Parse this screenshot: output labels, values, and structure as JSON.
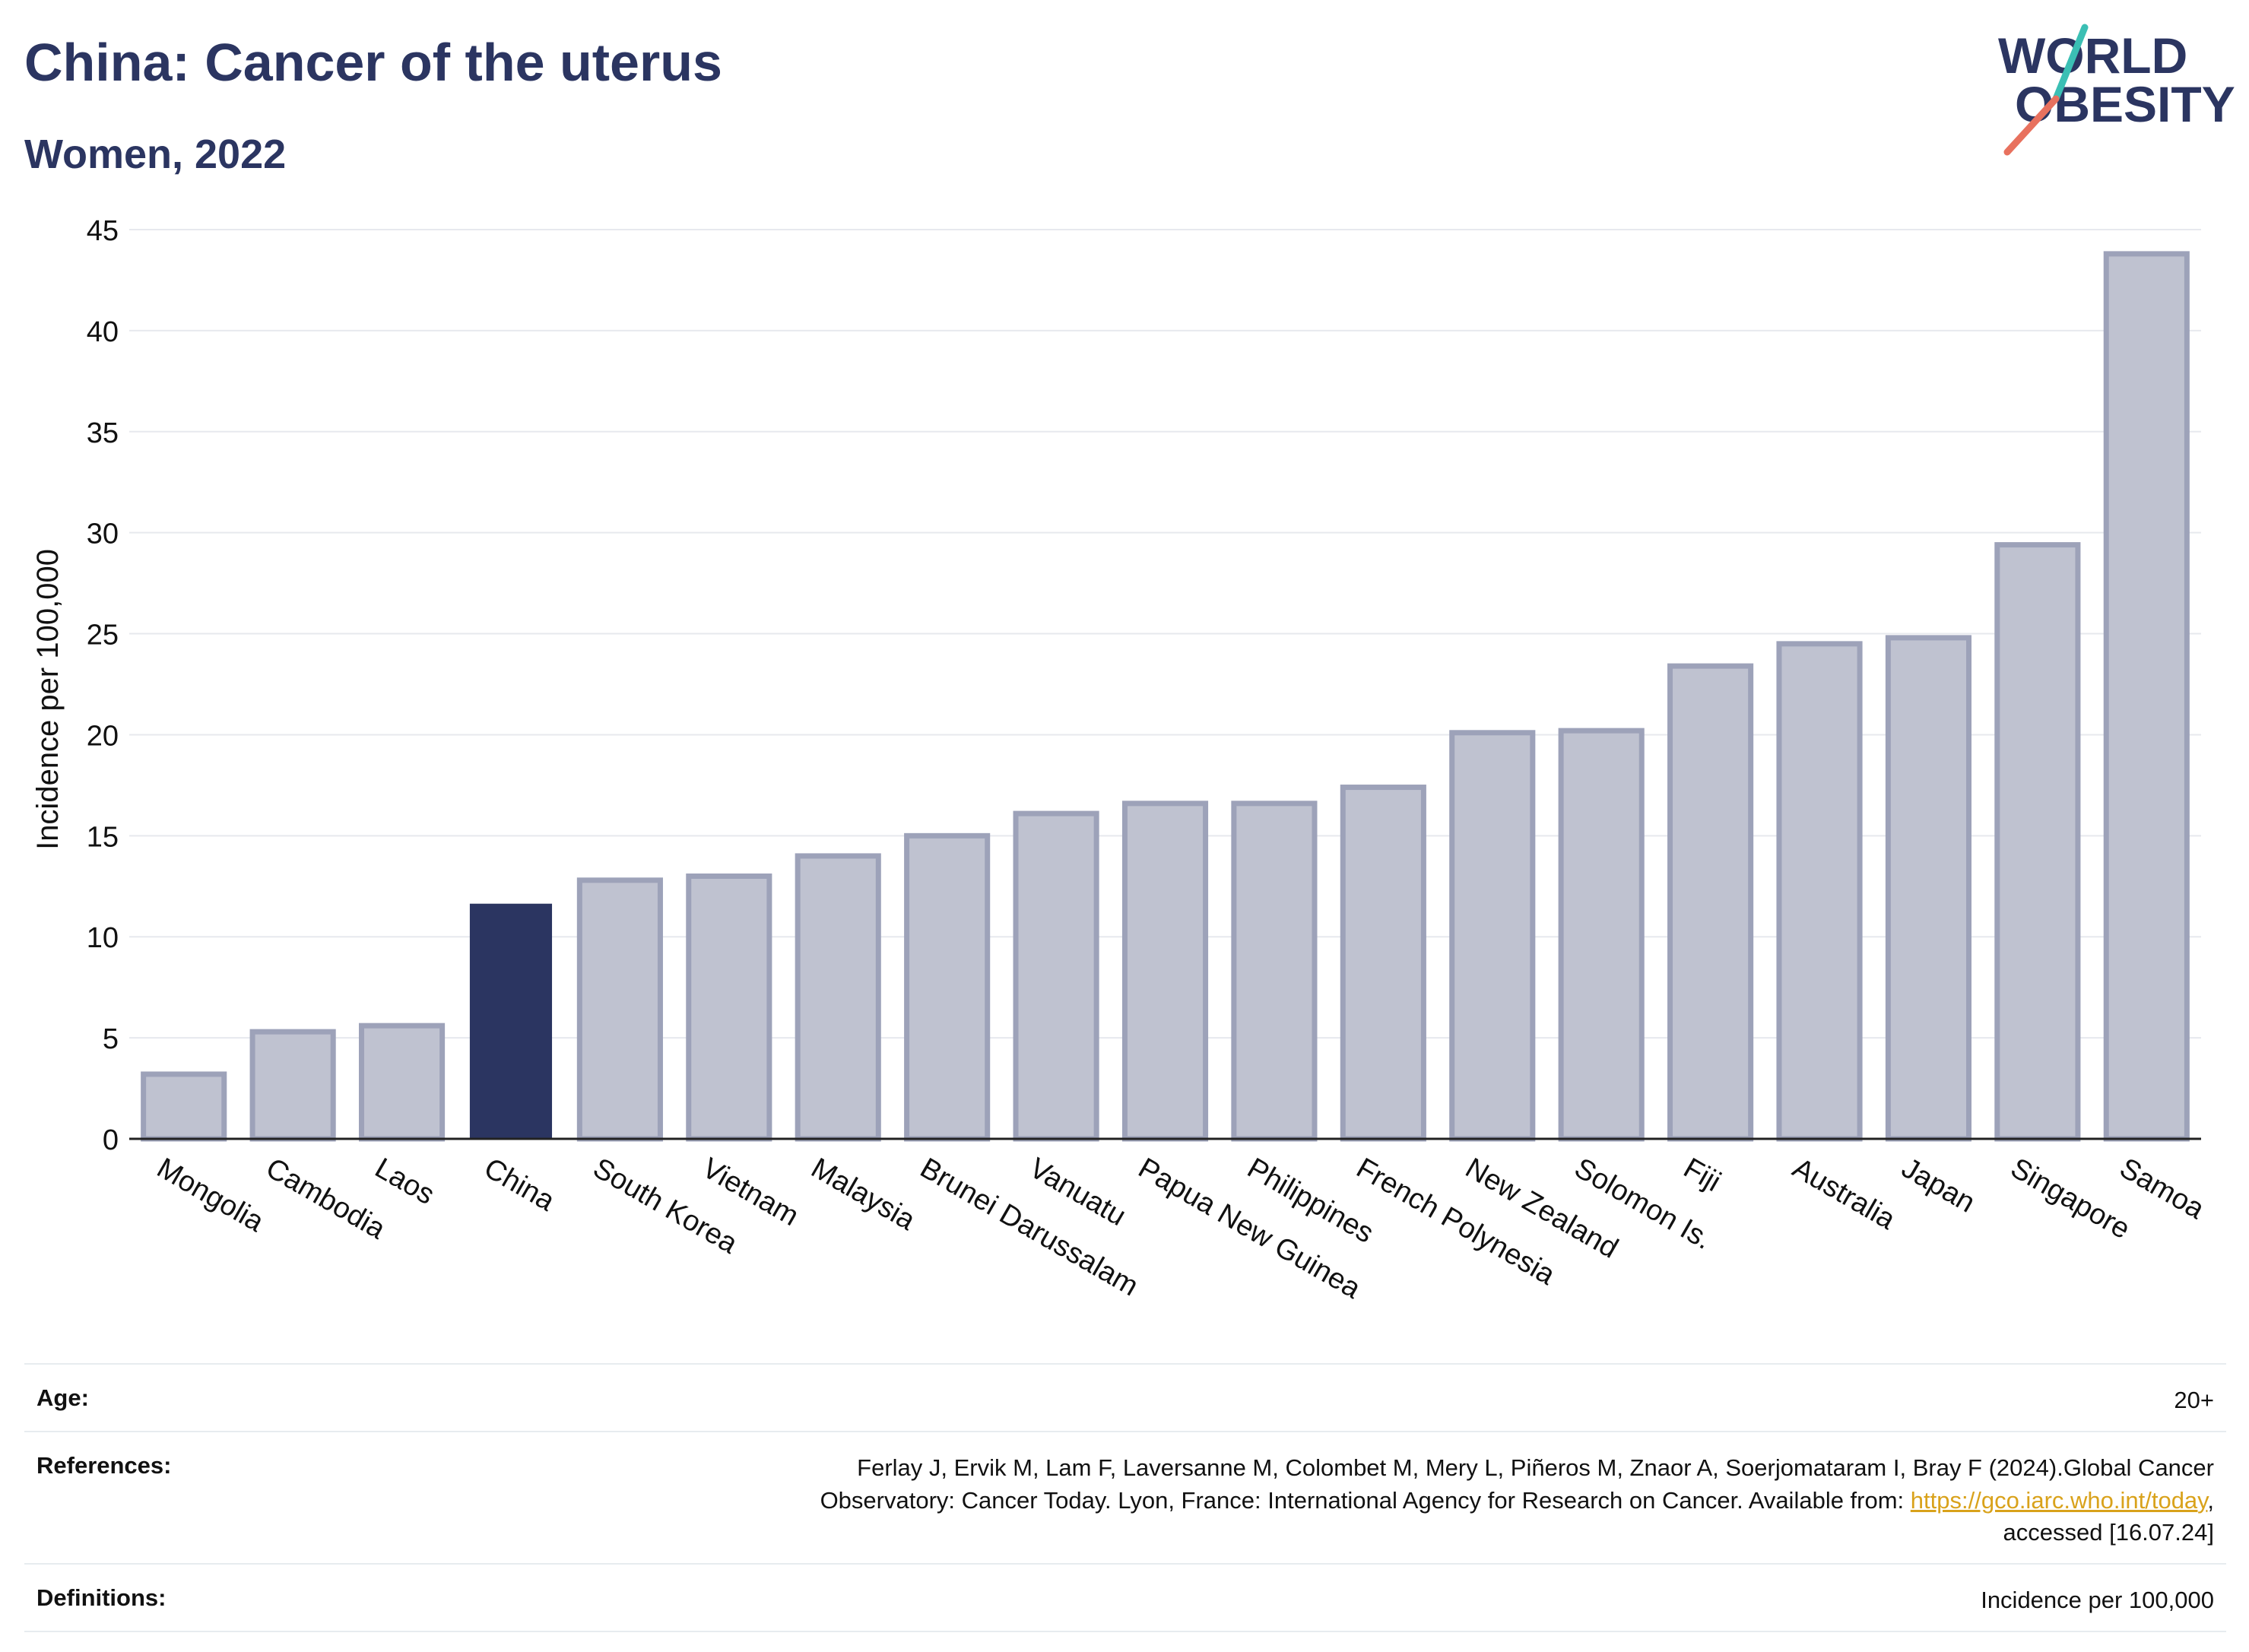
{
  "header": {
    "title": "China: Cancer of the uterus",
    "subtitle": "Women, 2022"
  },
  "logo": {
    "line1": "WORLD",
    "line2": "OBESITY"
  },
  "chart_data": {
    "type": "bar",
    "title": "China: Cancer of the uterus",
    "subtitle": "Women, 2022",
    "xlabel": "",
    "ylabel": "Incidence per 100,000",
    "ylim": [
      0,
      45
    ],
    "yticks": [
      0,
      5,
      10,
      15,
      20,
      25,
      30,
      35,
      40,
      45
    ],
    "grid": true,
    "categories": [
      "Mongolia",
      "Cambodia",
      "Laos",
      "China",
      "South Korea",
      "Vietnam",
      "Malaysia",
      "Brunei Darussalam",
      "Vanuatu",
      "Papua New Guinea",
      "Philippines",
      "French Polynesia",
      "New Zealand",
      "Solomon Is.",
      "Fiji",
      "Australia",
      "Japan",
      "Singapore",
      "Samoa"
    ],
    "values": [
      3.2,
      5.3,
      5.6,
      11.6,
      12.8,
      13.0,
      14.0,
      15.0,
      16.1,
      16.6,
      16.6,
      17.4,
      20.1,
      20.2,
      23.4,
      24.5,
      24.8,
      29.4,
      43.8
    ],
    "highlight": "China",
    "colors": {
      "highlight": "#2b3561",
      "others": "#bfc2d0",
      "others_border": "#9da2b9",
      "axis": "#222222",
      "grid": "#e7e9ee"
    }
  },
  "footer": {
    "age_label": "Age:",
    "age_value": "20+",
    "references_label": "References:",
    "references_line1": "Ferlay J, Ervik M, Lam F, Laversanne M, Colombet M, Mery L, Piñeros M, Znaor A, Soerjomataram I, Bray F (2024).Global Cancer",
    "references_line2_pre": "Observatory: Cancer Today. Lyon, France: International Agency for Research on Cancer. Available from: ",
    "references_link": "https://gco.iarc.who.int/today",
    "references_line2_post": ",",
    "references_line3": "accessed [16.07.24]",
    "definitions_label": "Definitions:",
    "definitions_value": "Incidence per 100,000"
  }
}
